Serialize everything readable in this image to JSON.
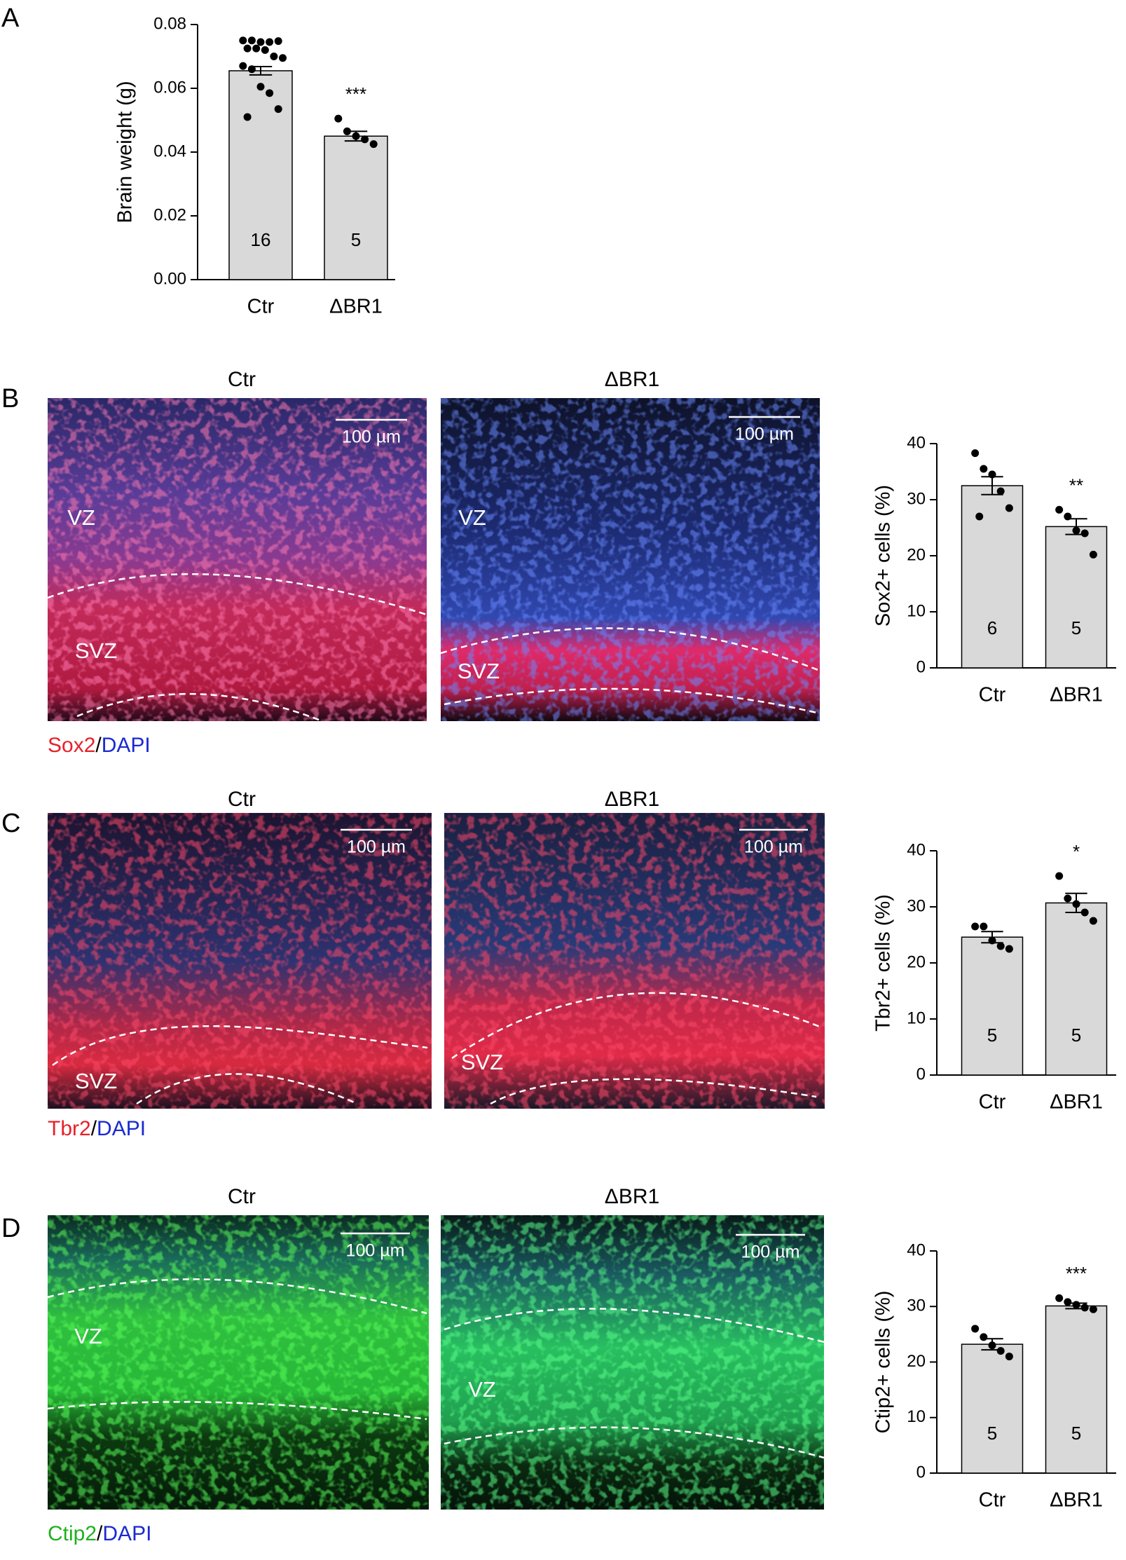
{
  "panels": [
    {
      "letter": "A"
    },
    {
      "letter": "B",
      "images": [
        {
          "title": "Ctr",
          "scale_bar": "100 µm",
          "zones": [
            "VZ",
            "SVZ"
          ]
        },
        {
          "title": "ΔBR1",
          "scale_bar": "100 µm",
          "zones": [
            "VZ",
            "SVZ"
          ]
        }
      ],
      "stain": [
        {
          "text": "Sox2",
          "color": "#e8202a"
        },
        {
          "text": "/",
          "color": "#000000"
        },
        {
          "text": "DAPI",
          "color": "#1a2ad0"
        }
      ]
    },
    {
      "letter": "C",
      "images": [
        {
          "title": "Ctr",
          "scale_bar": "100 µm",
          "zones": [
            "SVZ"
          ]
        },
        {
          "title": "ΔBR1",
          "scale_bar": "100 µm",
          "zones": [
            "SVZ"
          ]
        }
      ],
      "stain": [
        {
          "text": "Tbr2",
          "color": "#e8202a"
        },
        {
          "text": "/",
          "color": "#000000"
        },
        {
          "text": "DAPI",
          "color": "#1a2ad0"
        }
      ]
    },
    {
      "letter": "D",
      "images": [
        {
          "title": "Ctr",
          "scale_bar": "100 µm",
          "zones": [
            "VZ"
          ]
        },
        {
          "title": "ΔBR1",
          "scale_bar": "100 µm",
          "zones": [
            "VZ"
          ]
        }
      ],
      "stain": [
        {
          "text": "Ctip2",
          "color": "#20b020"
        },
        {
          "text": "/",
          "color": "#000000"
        },
        {
          "text": "DAPI",
          "color": "#1a2ad0"
        }
      ]
    }
  ],
  "chart_data": [
    {
      "type": "bar",
      "ylabel": "Brain weight (g)",
      "categories": [
        "Ctr",
        "ΔBR1"
      ],
      "color": "#d9d9d9",
      "values": [
        0.0655,
        0.045
      ],
      "errors": [
        0.0013,
        0.0015
      ],
      "points": [
        [
          0.075,
          0.075,
          0.0745,
          0.0745,
          0.0748,
          0.0725,
          0.0725,
          0.072,
          0.07,
          0.0695,
          0.067,
          0.066,
          0.0605,
          0.0585,
          0.0535,
          0.051
        ],
        [
          0.0505,
          0.0465,
          0.045,
          0.044,
          0.0425
        ]
      ],
      "n": [
        16,
        5
      ],
      "significance": [
        null,
        "***"
      ],
      "ylim": [
        0,
        0.08
      ],
      "yticks": [
        {
          "value": 0,
          "label": "0.00"
        },
        0.02,
        0.04,
        0.06,
        0.08
      ]
    },
    {
      "type": "bar",
      "ylabel": "Sox2+ cells (%)",
      "categories": [
        "Ctr",
        "ΔBR1"
      ],
      "color": "#d9d9d9",
      "values": [
        32.5,
        25.2
      ],
      "errors": [
        1.6,
        1.4
      ],
      "points": [
        [
          38.3,
          35.5,
          34.5,
          31.5,
          28.5,
          27.0
        ],
        [
          28.2,
          27.0,
          24.5,
          24.0,
          20.2
        ]
      ],
      "n": [
        6,
        5
      ],
      "significance": [
        null,
        "**"
      ],
      "ylim": [
        0,
        40
      ],
      "yticks": [
        0,
        10,
        20,
        30,
        40
      ]
    },
    {
      "type": "bar",
      "ylabel": "Tbr2+ cells (%)",
      "categories": [
        "Ctr",
        "ΔBR1"
      ],
      "color": "#d9d9d9",
      "values": [
        24.6,
        30.7
      ],
      "errors": [
        1.0,
        1.7
      ],
      "points": [
        [
          26.5,
          26.5,
          24.0,
          23.0,
          22.5
        ],
        [
          35.5,
          31.5,
          30.5,
          29.0,
          27.5
        ]
      ],
      "n": [
        5,
        5
      ],
      "significance": [
        null,
        "*"
      ],
      "ylim": [
        0,
        40
      ],
      "yticks": [
        0,
        10,
        20,
        30,
        40
      ]
    },
    {
      "type": "bar",
      "ylabel": "Ctip2+ cells (%)",
      "categories": [
        "Ctr",
        "ΔBR1"
      ],
      "color": "#d9d9d9",
      "values": [
        23.2,
        30.1
      ],
      "errors": [
        1.0,
        0.5
      ],
      "points": [
        [
          26.0,
          24.5,
          23.0,
          22.0,
          21.0
        ],
        [
          31.5,
          30.8,
          30.3,
          29.8,
          29.5
        ]
      ],
      "n": [
        5,
        5
      ],
      "significance": [
        null,
        "***"
      ],
      "ylim": [
        0,
        40
      ],
      "yticks": [
        0,
        10,
        20,
        30,
        40
      ]
    }
  ]
}
